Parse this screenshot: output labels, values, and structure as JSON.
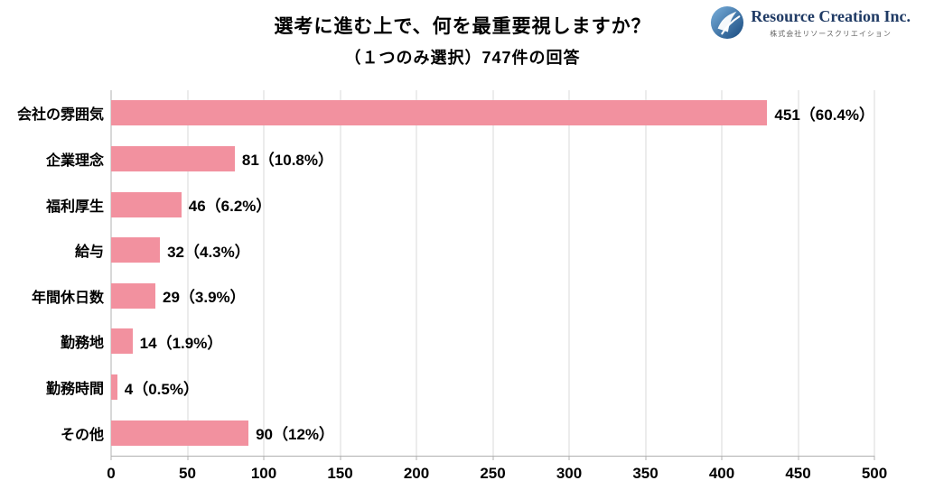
{
  "header": {
    "title": "選考に進む上で、何を最重要視しますか？",
    "subtitle": "（１つのみ選択）747件の回答"
  },
  "logo": {
    "company_name": "Resource Creation Inc.",
    "company_name_jp": "株式会社リソースクリエイション"
  },
  "chart_data": {
    "type": "bar",
    "orientation": "horizontal",
    "title": "選考に進む上で、何を最重要視しますか？",
    "subtitle": "（１つのみ選択）747件の回答",
    "categories": [
      "会社の雰囲気",
      "企業理念",
      "福利厚生",
      "給与",
      "年間休日数",
      "勤務地",
      "勤務時間",
      "その他"
    ],
    "values": [
      451,
      81,
      46,
      32,
      29,
      14,
      4,
      90
    ],
    "value_labels": [
      "451（60.4%）",
      "81（10.8%）",
      "46（6.2%）",
      "32（4.3%）",
      "29（3.9%）",
      "14（1.9%）",
      "4（0.5%）",
      "90（12%）"
    ],
    "total_responses": 747,
    "xlim": [
      0,
      500
    ],
    "x_ticks": [
      0,
      50,
      100,
      150,
      200,
      250,
      300,
      350,
      400,
      450,
      500
    ],
    "grid": true,
    "legend": false,
    "colors": {
      "bar": "#F2919F",
      "gridline": "#d9d9d9",
      "axis": "#b0b0b0",
      "text": "#000000",
      "logo_navy": "#1f3a64",
      "logo_blue": "#2e75b6"
    }
  }
}
